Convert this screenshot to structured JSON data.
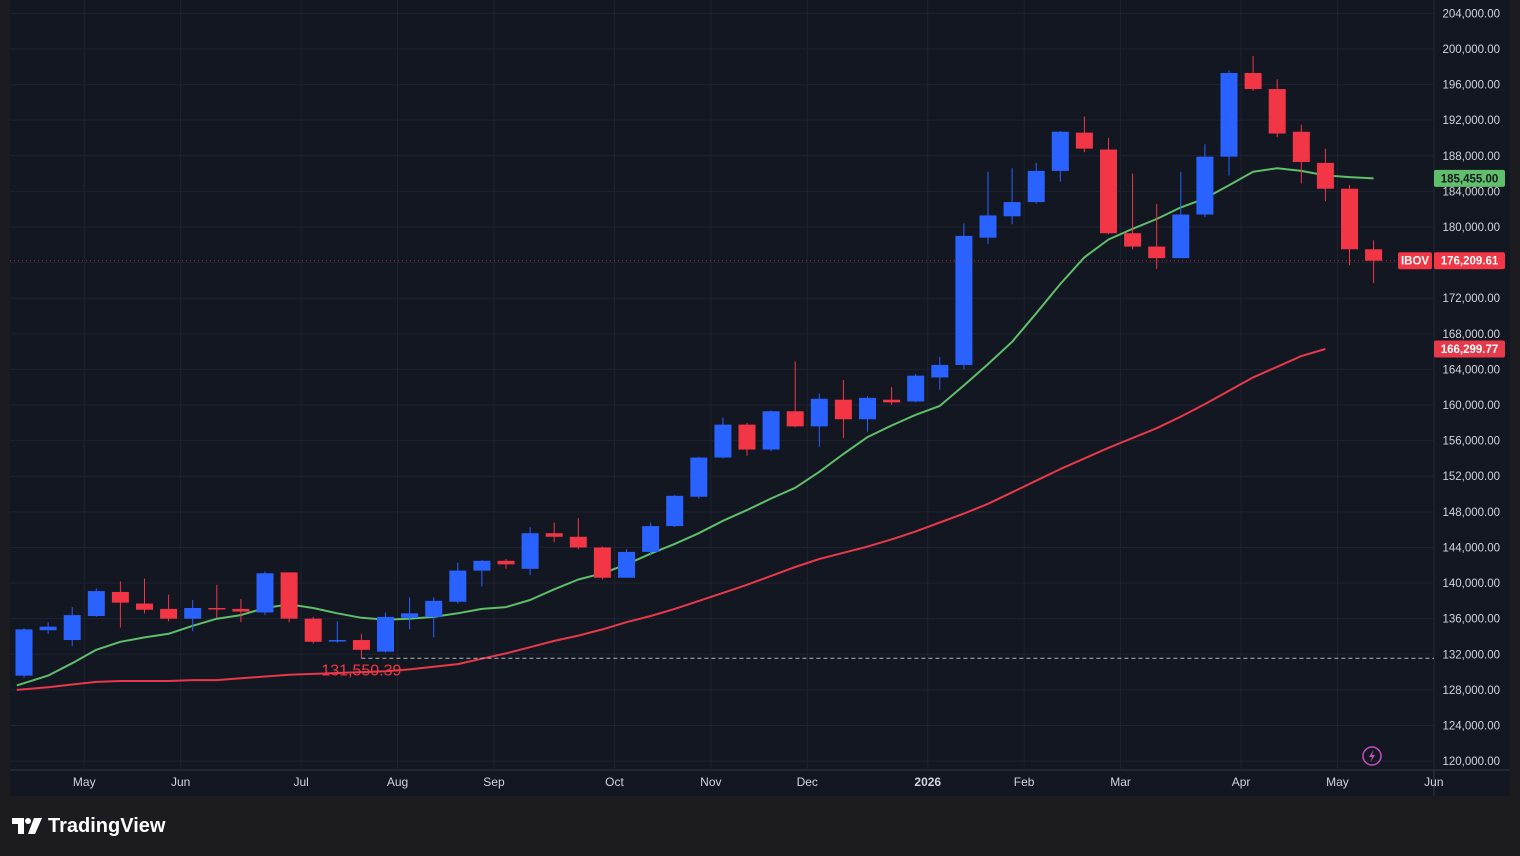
{
  "branding": {
    "logo_text": "TradingView"
  },
  "colors": {
    "background": "#131722",
    "grid": "#1f2330",
    "up": "#2962ff",
    "down": "#f23645",
    "ma_fast": "#5fbf6a",
    "ma_slow": "#e8394a",
    "axis_text": "#d1d4dc",
    "lightning": "#c34fc0"
  },
  "chart_data": {
    "type": "candlestick",
    "symbol": "IBOV",
    "ylim": [
      119000,
      205500
    ],
    "y_ticks": [
      120000,
      124000,
      128000,
      132000,
      136000,
      140000,
      144000,
      148000,
      152000,
      156000,
      160000,
      164000,
      168000,
      172000,
      176000,
      180000,
      184000,
      188000,
      192000,
      196000,
      200000,
      204000
    ],
    "y_tick_labels": [
      "120,000.00",
      "124,000.00",
      "128,000.00",
      "132,000.00",
      "136,000.00",
      "140,000.00",
      "144,000.00",
      "148,000.00",
      "152,000.00",
      "156,000.00",
      "160,000.00",
      "164,000.00",
      "168,000.00",
      "172,000.00",
      "176,000.00",
      "180,000.00",
      "184,000.00",
      "188,000.00",
      "192,000.00",
      "196,000.00",
      "200,000.00",
      "204,000.00"
    ],
    "x_labels": [
      {
        "label": "May",
        "index": 2.5,
        "bold": false
      },
      {
        "label": "Jun",
        "index": 6.5,
        "bold": false
      },
      {
        "label": "Jul",
        "index": 11.5,
        "bold": false
      },
      {
        "label": "Aug",
        "index": 15.5,
        "bold": false
      },
      {
        "label": "Sep",
        "index": 19.5,
        "bold": false
      },
      {
        "label": "Oct",
        "index": 24.5,
        "bold": false
      },
      {
        "label": "Nov",
        "index": 28.5,
        "bold": false
      },
      {
        "label": "Dec",
        "index": 32.5,
        "bold": false
      },
      {
        "label": "2026",
        "index": 37.5,
        "bold": true
      },
      {
        "label": "Feb",
        "index": 41.5,
        "bold": false
      },
      {
        "label": "Mar",
        "index": 45.5,
        "bold": false
      },
      {
        "label": "Apr",
        "index": 50.5,
        "bold": false
      },
      {
        "label": "May",
        "index": 54.5,
        "bold": false
      },
      {
        "label": "Jun",
        "index": 58.5,
        "bold": false
      }
    ],
    "candles": [
      {
        "o": 129600,
        "h": 134900,
        "l": 129400,
        "c": 134800
      },
      {
        "o": 134700,
        "h": 135600,
        "l": 134300,
        "c": 135100
      },
      {
        "o": 133600,
        "h": 137300,
        "l": 132900,
        "c": 136400
      },
      {
        "o": 136300,
        "h": 139400,
        "l": 136200,
        "c": 139100
      },
      {
        "o": 139000,
        "h": 140200,
        "l": 135000,
        "c": 137800
      },
      {
        "o": 137700,
        "h": 140500,
        "l": 136600,
        "c": 137000
      },
      {
        "o": 137100,
        "h": 138700,
        "l": 135700,
        "c": 136000
      },
      {
        "o": 136000,
        "h": 138100,
        "l": 134600,
        "c": 137200
      },
      {
        "o": 137200,
        "h": 139800,
        "l": 136100,
        "c": 137100
      },
      {
        "o": 137100,
        "h": 138200,
        "l": 135600,
        "c": 136800
      },
      {
        "o": 136700,
        "h": 141300,
        "l": 136400,
        "c": 141100
      },
      {
        "o": 141200,
        "h": 141200,
        "l": 135600,
        "c": 136000
      },
      {
        "o": 136000,
        "h": 136200,
        "l": 133200,
        "c": 133400
      },
      {
        "o": 133500,
        "h": 135700,
        "l": 133300,
        "c": 133600
      },
      {
        "o": 133600,
        "h": 134300,
        "l": 131550,
        "c": 132500
      },
      {
        "o": 132300,
        "h": 136700,
        "l": 132200,
        "c": 136200
      },
      {
        "o": 136100,
        "h": 138400,
        "l": 134800,
        "c": 136600
      },
      {
        "o": 136200,
        "h": 138400,
        "l": 133900,
        "c": 138000
      },
      {
        "o": 137900,
        "h": 142300,
        "l": 137700,
        "c": 141400
      },
      {
        "o": 141400,
        "h": 142600,
        "l": 139600,
        "c": 142500
      },
      {
        "o": 142500,
        "h": 142700,
        "l": 141600,
        "c": 142100
      },
      {
        "o": 141600,
        "h": 146300,
        "l": 140900,
        "c": 145600
      },
      {
        "o": 145600,
        "h": 146800,
        "l": 144600,
        "c": 145200
      },
      {
        "o": 145200,
        "h": 147300,
        "l": 143800,
        "c": 144000
      },
      {
        "o": 144000,
        "h": 144100,
        "l": 140400,
        "c": 140600
      },
      {
        "o": 140600,
        "h": 143800,
        "l": 140600,
        "c": 143500
      },
      {
        "o": 143500,
        "h": 146800,
        "l": 143100,
        "c": 146400
      },
      {
        "o": 146400,
        "h": 149900,
        "l": 146300,
        "c": 149800
      },
      {
        "o": 149700,
        "h": 154200,
        "l": 149500,
        "c": 154100
      },
      {
        "o": 154100,
        "h": 158600,
        "l": 154000,
        "c": 157800
      },
      {
        "o": 157800,
        "h": 158000,
        "l": 154300,
        "c": 155000
      },
      {
        "o": 155000,
        "h": 159400,
        "l": 154800,
        "c": 159300
      },
      {
        "o": 159300,
        "h": 164900,
        "l": 157500,
        "c": 157600
      },
      {
        "o": 157600,
        "h": 161300,
        "l": 155300,
        "c": 160700
      },
      {
        "o": 160600,
        "h": 162800,
        "l": 156300,
        "c": 158400
      },
      {
        "o": 158400,
        "h": 161000,
        "l": 157000,
        "c": 160800
      },
      {
        "o": 160600,
        "h": 162000,
        "l": 160000,
        "c": 160300
      },
      {
        "o": 160400,
        "h": 163500,
        "l": 160300,
        "c": 163300
      },
      {
        "o": 163100,
        "h": 165400,
        "l": 161700,
        "c": 164500
      },
      {
        "o": 164500,
        "h": 180400,
        "l": 164000,
        "c": 179000
      },
      {
        "o": 178800,
        "h": 186200,
        "l": 178100,
        "c": 181300
      },
      {
        "o": 181200,
        "h": 186600,
        "l": 180300,
        "c": 182800
      },
      {
        "o": 182800,
        "h": 187200,
        "l": 182600,
        "c": 186300
      },
      {
        "o": 186300,
        "h": 190800,
        "l": 185100,
        "c": 190700
      },
      {
        "o": 190600,
        "h": 192400,
        "l": 188400,
        "c": 188800
      },
      {
        "o": 188700,
        "h": 190000,
        "l": 179200,
        "c": 179300
      },
      {
        "o": 179300,
        "h": 186000,
        "l": 177500,
        "c": 177800
      },
      {
        "o": 177800,
        "h": 182600,
        "l": 175300,
        "c": 176500
      },
      {
        "o": 176500,
        "h": 186200,
        "l": 176500,
        "c": 181400
      },
      {
        "o": 181400,
        "h": 189300,
        "l": 181100,
        "c": 187900
      },
      {
        "o": 187900,
        "h": 197600,
        "l": 185800,
        "c": 197300
      },
      {
        "o": 197300,
        "h": 199200,
        "l": 195300,
        "c": 195500
      },
      {
        "o": 195500,
        "h": 196600,
        "l": 190100,
        "c": 190500
      },
      {
        "o": 190700,
        "h": 191500,
        "l": 184900,
        "c": 187300
      },
      {
        "o": 187200,
        "h": 188800,
        "l": 182900,
        "c": 184300
      },
      {
        "o": 184300,
        "h": 184700,
        "l": 175700,
        "c": 177500
      },
      {
        "o": 177500,
        "h": 178500,
        "l": 173700,
        "c": 176209.61
      }
    ],
    "series": [
      {
        "name": "fast moving average",
        "color": "#5fbf6a",
        "points": [
          [
            -0.3,
            128500
          ],
          [
            1,
            129600
          ],
          [
            2,
            131000
          ],
          [
            3,
            132500
          ],
          [
            4,
            133400
          ],
          [
            5,
            133900
          ],
          [
            6,
            134300
          ],
          [
            7,
            135200
          ],
          [
            8,
            136000
          ],
          [
            9,
            136400
          ],
          [
            10,
            137200
          ],
          [
            11,
            137600
          ],
          [
            12,
            137200
          ],
          [
            13,
            136600
          ],
          [
            14,
            136100
          ],
          [
            15,
            135900
          ],
          [
            16,
            136000
          ],
          [
            17,
            136200
          ],
          [
            18,
            136600
          ],
          [
            19,
            137100
          ],
          [
            20,
            137300
          ],
          [
            21,
            138100
          ],
          [
            22,
            139300
          ],
          [
            23,
            140400
          ],
          [
            24,
            141100
          ],
          [
            25,
            142100
          ],
          [
            26,
            143300
          ],
          [
            27,
            144400
          ],
          [
            28,
            145600
          ],
          [
            29,
            147000
          ],
          [
            30,
            148200
          ],
          [
            31,
            149500
          ],
          [
            32,
            150700
          ],
          [
            33,
            152500
          ],
          [
            34,
            154500
          ],
          [
            35,
            156400
          ],
          [
            36,
            157700
          ],
          [
            37,
            158900
          ],
          [
            38,
            159900
          ],
          [
            39,
            162200
          ],
          [
            40,
            164600
          ],
          [
            41,
            167100
          ],
          [
            42,
            170300
          ],
          [
            43,
            173600
          ],
          [
            44,
            176600
          ],
          [
            45,
            178600
          ],
          [
            46,
            179800
          ],
          [
            47,
            180900
          ],
          [
            48,
            182200
          ],
          [
            49,
            183200
          ],
          [
            50,
            184700
          ],
          [
            51,
            186200
          ],
          [
            52,
            186600
          ],
          [
            53,
            186300
          ],
          [
            54,
            185800
          ],
          [
            55,
            185600
          ],
          [
            56,
            185455
          ]
        ]
      },
      {
        "name": "slow moving average",
        "color": "#e8394a",
        "points": [
          [
            -0.3,
            128000
          ],
          [
            1,
            128300
          ],
          [
            2,
            128600
          ],
          [
            3,
            128900
          ],
          [
            4,
            129000
          ],
          [
            5,
            129000
          ],
          [
            6,
            129000
          ],
          [
            7,
            129100
          ],
          [
            8,
            129100
          ],
          [
            9,
            129300
          ],
          [
            10,
            129500
          ],
          [
            11,
            129700
          ],
          [
            12,
            129800
          ],
          [
            13,
            129900
          ],
          [
            14,
            130000
          ],
          [
            15,
            130100
          ],
          [
            16,
            130300
          ],
          [
            17,
            130600
          ],
          [
            18,
            130900
          ],
          [
            19,
            131500
          ],
          [
            20,
            132100
          ],
          [
            21,
            132800
          ],
          [
            22,
            133500
          ],
          [
            23,
            134100
          ],
          [
            24,
            134800
          ],
          [
            25,
            135600
          ],
          [
            26,
            136300
          ],
          [
            27,
            137100
          ],
          [
            28,
            138000
          ],
          [
            29,
            138900
          ],
          [
            30,
            139800
          ],
          [
            31,
            140800
          ],
          [
            32,
            141800
          ],
          [
            33,
            142700
          ],
          [
            34,
            143400
          ],
          [
            35,
            144100
          ],
          [
            36,
            144900
          ],
          [
            37,
            145800
          ],
          [
            38,
            146800
          ],
          [
            39,
            147800
          ],
          [
            40,
            148900
          ],
          [
            41,
            150200
          ],
          [
            42,
            151500
          ],
          [
            43,
            152800
          ],
          [
            44,
            154000
          ],
          [
            45,
            155200
          ],
          [
            46,
            156300
          ],
          [
            47,
            157400
          ],
          [
            48,
            158700
          ],
          [
            49,
            160100
          ],
          [
            50,
            161600
          ],
          [
            51,
            163100
          ],
          [
            52,
            164300
          ],
          [
            53,
            165500
          ],
          [
            54,
            166299.77
          ]
        ]
      }
    ],
    "labels": {
      "price": {
        "text": "IBOV",
        "value": "176,209.61"
      },
      "ma_fast_value": "185,455.00",
      "ma_slow_value": "166,299.77",
      "low_annotation": "131,550.39"
    },
    "low_line_value": 131550.39
  }
}
